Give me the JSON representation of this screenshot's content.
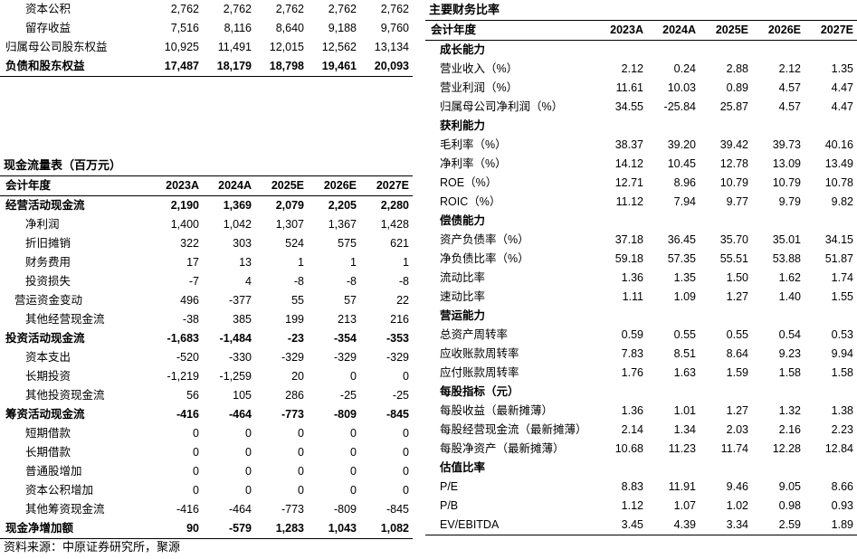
{
  "balance_sheet_tail": {
    "rows": [
      {
        "label": "资本公积",
        "values": [
          "2,762",
          "2,762",
          "2,762",
          "2,762",
          "2,762"
        ],
        "bold": false,
        "indent": 3
      },
      {
        "label": "留存收益",
        "values": [
          "7,516",
          "8,116",
          "8,640",
          "9,188",
          "9,760"
        ],
        "bold": false,
        "indent": 3
      },
      {
        "label": "归属母公司股东权益",
        "values": [
          "10,925",
          "11,491",
          "12,015",
          "12,562",
          "13,134"
        ],
        "bold": false,
        "indent": 1
      },
      {
        "label": "负债和股东权益",
        "values": [
          "17,487",
          "18,179",
          "18,798",
          "19,461",
          "20,093"
        ],
        "bold": true,
        "indent": 1
      }
    ]
  },
  "cash_flow": {
    "title": "现金流量表（百万元）",
    "header": [
      "会计年度",
      "2023A",
      "2024A",
      "2025E",
      "2026E",
      "2027E"
    ],
    "rows": [
      {
        "label": "经营活动现金流",
        "values": [
          "2,190",
          "1,369",
          "2,079",
          "2,205",
          "2,280"
        ],
        "bold": true,
        "indent": 1
      },
      {
        "label": "净利润",
        "values": [
          "1,400",
          "1,042",
          "1,307",
          "1,367",
          "1,428"
        ],
        "bold": false,
        "indent": 3
      },
      {
        "label": "折旧摊销",
        "values": [
          "322",
          "303",
          "524",
          "575",
          "621"
        ],
        "bold": false,
        "indent": 3
      },
      {
        "label": "财务费用",
        "values": [
          "17",
          "13",
          "1",
          "1",
          "1"
        ],
        "bold": false,
        "indent": 3
      },
      {
        "label": "投资损失",
        "values": [
          "-7",
          "4",
          "-8",
          "-8",
          "-8"
        ],
        "bold": false,
        "indent": 3
      },
      {
        "label": "营运资金变动",
        "values": [
          "496",
          "-377",
          "55",
          "57",
          "22"
        ],
        "bold": false,
        "indent": 2
      },
      {
        "label": "其他经营现金流",
        "values": [
          "-38",
          "385",
          "199",
          "213",
          "216"
        ],
        "bold": false,
        "indent": 3
      },
      {
        "label": "投资活动现金流",
        "values": [
          "-1,683",
          "-1,484",
          "-23",
          "-354",
          "-353"
        ],
        "bold": true,
        "indent": 1
      },
      {
        "label": "资本支出",
        "values": [
          "-520",
          "-330",
          "-329",
          "-329",
          "-329"
        ],
        "bold": false,
        "indent": 3
      },
      {
        "label": "长期投资",
        "values": [
          "-1,219",
          "-1,259",
          "20",
          "0",
          "0"
        ],
        "bold": false,
        "indent": 3
      },
      {
        "label": "其他投资现金流",
        "values": [
          "56",
          "105",
          "286",
          "-25",
          "-25"
        ],
        "bold": false,
        "indent": 3
      },
      {
        "label": "筹资活动现金流",
        "values": [
          "-416",
          "-464",
          "-773",
          "-809",
          "-845"
        ],
        "bold": true,
        "indent": 1
      },
      {
        "label": "短期借款",
        "values": [
          "0",
          "0",
          "0",
          "0",
          "0"
        ],
        "bold": false,
        "indent": 3
      },
      {
        "label": "长期借款",
        "values": [
          "0",
          "0",
          "0",
          "0",
          "0"
        ],
        "bold": false,
        "indent": 3
      },
      {
        "label": "普通股增加",
        "values": [
          "0",
          "0",
          "0",
          "0",
          "0"
        ],
        "bold": false,
        "indent": 3
      },
      {
        "label": "资本公积增加",
        "values": [
          "0",
          "0",
          "0",
          "0",
          "0"
        ],
        "bold": false,
        "indent": 3
      },
      {
        "label": "其他筹资现金流",
        "values": [
          "-416",
          "-464",
          "-773",
          "-809",
          "-845"
        ],
        "bold": false,
        "indent": 3
      },
      {
        "label": "现金净增加额",
        "values": [
          "90",
          "-579",
          "1,283",
          "1,043",
          "1,082"
        ],
        "bold": true,
        "indent": 1
      }
    ]
  },
  "ratios": {
    "title": "主要财务比率",
    "header": [
      "会计年度",
      "2023A",
      "2024A",
      "2025E",
      "2026E",
      "2027E"
    ],
    "sections": [
      {
        "name": "成长能力",
        "rows": [
          {
            "label": "营业收入（%）",
            "values": [
              "2.12",
              "0.24",
              "2.88",
              "2.12",
              "1.35"
            ]
          },
          {
            "label": "营业利润（%）",
            "values": [
              "11.61",
              "10.03",
              "0.89",
              "4.57",
              "4.47"
            ]
          },
          {
            "label": "归属母公司净利润（%）",
            "values": [
              "34.55",
              "-25.84",
              "25.87",
              "4.57",
              "4.47"
            ]
          }
        ]
      },
      {
        "name": "获利能力",
        "rows": [
          {
            "label": "毛利率（%）",
            "values": [
              "38.37",
              "39.20",
              "39.42",
              "39.73",
              "40.16"
            ]
          },
          {
            "label": "净利率（%）",
            "values": [
              "14.12",
              "10.45",
              "12.78",
              "13.09",
              "13.49"
            ]
          },
          {
            "label": "ROE（%）",
            "values": [
              "12.71",
              "8.96",
              "10.79",
              "10.79",
              "10.78"
            ]
          },
          {
            "label": "ROIC（%）",
            "values": [
              "11.12",
              "7.94",
              "9.77",
              "9.79",
              "9.82"
            ]
          }
        ]
      },
      {
        "name": "偿债能力",
        "rows": [
          {
            "label": "资产负债率（%）",
            "values": [
              "37.18",
              "36.45",
              "35.70",
              "35.01",
              "34.15"
            ]
          },
          {
            "label": "净负债比率（%）",
            "values": [
              "59.18",
              "57.35",
              "55.51",
              "53.88",
              "51.87"
            ]
          },
          {
            "label": "流动比率",
            "values": [
              "1.36",
              "1.35",
              "1.50",
              "1.62",
              "1.74"
            ]
          },
          {
            "label": "速动比率",
            "values": [
              "1.11",
              "1.09",
              "1.27",
              "1.40",
              "1.55"
            ]
          }
        ]
      },
      {
        "name": "营运能力",
        "rows": [
          {
            "label": "总资产周转率",
            "values": [
              "0.59",
              "0.55",
              "0.55",
              "0.54",
              "0.53"
            ]
          },
          {
            "label": "应收账款周转率",
            "values": [
              "7.83",
              "8.51",
              "8.64",
              "9.23",
              "9.94"
            ]
          },
          {
            "label": "应付账款周转率",
            "values": [
              "1.76",
              "1.63",
              "1.59",
              "1.58",
              "1.58"
            ]
          }
        ]
      },
      {
        "name": "每股指标（元）",
        "rows": [
          {
            "label": "每股收益（最新摊薄）",
            "values": [
              "1.36",
              "1.01",
              "1.27",
              "1.32",
              "1.38"
            ]
          },
          {
            "label": "每股经营现金流（最新摊薄）",
            "values": [
              "2.14",
              "1.34",
              "2.03",
              "2.16",
              "2.23"
            ]
          },
          {
            "label": "每股净资产（最新摊薄）",
            "values": [
              "10.68",
              "11.23",
              "11.74",
              "12.28",
              "12.84"
            ]
          }
        ]
      },
      {
        "name": "估值比率",
        "rows": [
          {
            "label": "P/E",
            "values": [
              "8.83",
              "11.91",
              "9.46",
              "9.05",
              "8.66"
            ]
          },
          {
            "label": "P/B",
            "values": [
              "1.12",
              "1.07",
              "1.02",
              "0.98",
              "0.93"
            ]
          },
          {
            "label": "EV/EBITDA",
            "values": [
              "3.45",
              "4.39",
              "3.34",
              "2.59",
              "1.89"
            ]
          }
        ]
      }
    ]
  },
  "source": "资料来源：中原证券研究所，聚源"
}
